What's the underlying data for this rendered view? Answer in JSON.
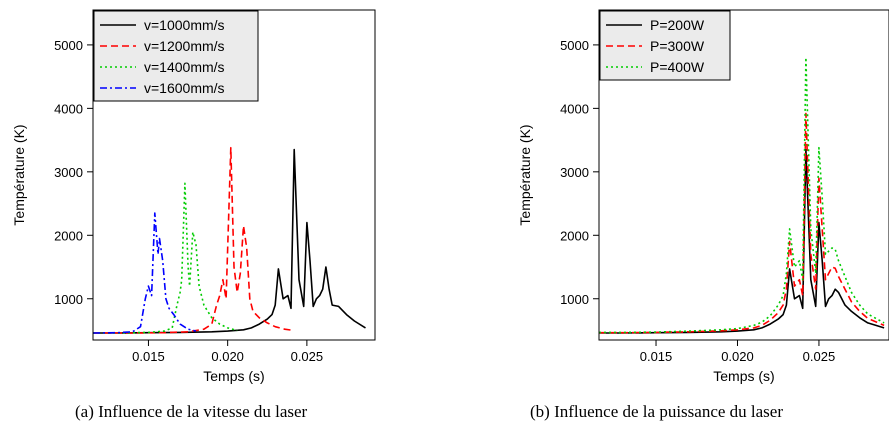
{
  "chart_data": [
    {
      "type": "line",
      "caption": "(a)  Influence de la vitesse du laser",
      "xlabel": "Temps (s)",
      "ylabel": "Température (K)",
      "xlim": [
        0.0115,
        0.0293
      ],
      "ylim": [
        350,
        5550
      ],
      "xticks": [
        "0.015",
        "0.020",
        "0.025"
      ],
      "xtick_values": [
        0.015,
        0.02,
        0.025
      ],
      "yticks": [
        "1000",
        "2000",
        "3000",
        "4000",
        "5000"
      ],
      "ytick_values": [
        1000,
        2000,
        3000,
        4000,
        5000
      ],
      "legend_position": "top-left",
      "series": [
        {
          "name": "v=1000mm/s",
          "color": "#000000",
          "dash": "solid",
          "points": [
            [
              0.0115,
              460
            ],
            [
              0.013,
              460
            ],
            [
              0.015,
              465
            ],
            [
              0.017,
              470
            ],
            [
              0.019,
              480
            ],
            [
              0.02,
              490
            ],
            [
              0.021,
              510
            ],
            [
              0.0215,
              540
            ],
            [
              0.022,
              600
            ],
            [
              0.0225,
              680
            ],
            [
              0.0228,
              750
            ],
            [
              0.023,
              900
            ],
            [
              0.0232,
              1470
            ],
            [
              0.0235,
              1000
            ],
            [
              0.0238,
              1050
            ],
            [
              0.024,
              850
            ],
            [
              0.0242,
              3350
            ],
            [
              0.0245,
              1300
            ],
            [
              0.0248,
              880
            ],
            [
              0.025,
              2200
            ],
            [
              0.0252,
              1600
            ],
            [
              0.0254,
              880
            ],
            [
              0.0256,
              1000
            ],
            [
              0.0258,
              1050
            ],
            [
              0.026,
              1150
            ],
            [
              0.0262,
              1500
            ],
            [
              0.0264,
              1150
            ],
            [
              0.0266,
              900
            ],
            [
              0.027,
              880
            ],
            [
              0.0275,
              750
            ],
            [
              0.028,
              650
            ],
            [
              0.0287,
              540
            ]
          ]
        },
        {
          "name": "v=1200mm/s",
          "color": "#ff0000",
          "dash": "dashed",
          "points": [
            [
              0.0115,
              460
            ],
            [
              0.014,
              460
            ],
            [
              0.016,
              465
            ],
            [
              0.0175,
              480
            ],
            [
              0.0185,
              520
            ],
            [
              0.019,
              600
            ],
            [
              0.0193,
              900
            ],
            [
              0.0195,
              1050
            ],
            [
              0.0197,
              1300
            ],
            [
              0.0199,
              1000
            ],
            [
              0.0202,
              3380
            ],
            [
              0.0204,
              1500
            ],
            [
              0.0206,
              1100
            ],
            [
              0.0208,
              1400
            ],
            [
              0.021,
              2150
            ],
            [
              0.0212,
              1800
            ],
            [
              0.0214,
              1000
            ],
            [
              0.0216,
              800
            ],
            [
              0.022,
              700
            ],
            [
              0.0225,
              620
            ],
            [
              0.023,
              560
            ],
            [
              0.0236,
              520
            ],
            [
              0.0242,
              500
            ]
          ]
        },
        {
          "name": "v=1400mm/s",
          "color": "#00cc00",
          "dash": "dotted",
          "points": [
            [
              0.0115,
              460
            ],
            [
              0.013,
              460
            ],
            [
              0.015,
              470
            ],
            [
              0.016,
              490
            ],
            [
              0.0165,
              540
            ],
            [
              0.0168,
              900
            ],
            [
              0.017,
              1100
            ],
            [
              0.0171,
              1300
            ],
            [
              0.0173,
              2820
            ],
            [
              0.0175,
              1500
            ],
            [
              0.0176,
              1200
            ],
            [
              0.0178,
              2050
            ],
            [
              0.018,
              1850
            ],
            [
              0.0182,
              1200
            ],
            [
              0.0185,
              900
            ],
            [
              0.019,
              700
            ],
            [
              0.0195,
              600
            ],
            [
              0.02,
              540
            ],
            [
              0.0206,
              500
            ]
          ]
        },
        {
          "name": "v=1600mm/s",
          "color": "#0000ff",
          "dash": "dashdot",
          "points": [
            [
              0.0115,
              460
            ],
            [
              0.013,
              465
            ],
            [
              0.014,
              480
            ],
            [
              0.0145,
              560
            ],
            [
              0.0148,
              1000
            ],
            [
              0.015,
              1200
            ],
            [
              0.0152,
              1050
            ],
            [
              0.0154,
              2350
            ],
            [
              0.0156,
              1700
            ],
            [
              0.0157,
              1950
            ],
            [
              0.0159,
              1600
            ],
            [
              0.0161,
              1000
            ],
            [
              0.0163,
              850
            ],
            [
              0.0166,
              750
            ],
            [
              0.017,
              600
            ],
            [
              0.0175,
              520
            ],
            [
              0.018,
              490
            ]
          ]
        }
      ]
    },
    {
      "type": "line",
      "caption": "(b)  Influence de la puissance du laser",
      "xlabel": "Temps (s)",
      "ylabel": "Température (K)",
      "xlim": [
        0.0115,
        0.0293
      ],
      "ylim": [
        350,
        5550
      ],
      "xticks": [
        "0.015",
        "0.020",
        "0.025"
      ],
      "xtick_values": [
        0.015,
        0.02,
        0.025
      ],
      "yticks": [
        "1000",
        "2000",
        "3000",
        "4000",
        "5000"
      ],
      "ytick_values": [
        1000,
        2000,
        3000,
        4000,
        5000
      ],
      "legend_position": "top-left",
      "series": [
        {
          "name": "P=200W",
          "color": "#000000",
          "dash": "solid",
          "points": [
            [
              0.0115,
              460
            ],
            [
              0.013,
              460
            ],
            [
              0.015,
              465
            ],
            [
              0.017,
              470
            ],
            [
              0.019,
              480
            ],
            [
              0.02,
              490
            ],
            [
              0.021,
              510
            ],
            [
              0.0215,
              540
            ],
            [
              0.022,
              600
            ],
            [
              0.0225,
              680
            ],
            [
              0.0228,
              750
            ],
            [
              0.023,
              900
            ],
            [
              0.0232,
              1470
            ],
            [
              0.0235,
              1000
            ],
            [
              0.0238,
              1050
            ],
            [
              0.024,
              850
            ],
            [
              0.0242,
              3350
            ],
            [
              0.0245,
              1300
            ],
            [
              0.0248,
              880
            ],
            [
              0.025,
              2200
            ],
            [
              0.0252,
              1600
            ],
            [
              0.0254,
              880
            ],
            [
              0.0256,
              1000
            ],
            [
              0.0258,
              1050
            ],
            [
              0.026,
              1150
            ],
            [
              0.0262,
              1100
            ],
            [
              0.0266,
              900
            ],
            [
              0.027,
              800
            ],
            [
              0.0275,
              700
            ],
            [
              0.028,
              620
            ],
            [
              0.029,
              540
            ]
          ]
        },
        {
          "name": "P=300W",
          "color": "#ff0000",
          "dash": "dashed",
          "points": [
            [
              0.0115,
              465
            ],
            [
              0.013,
              465
            ],
            [
              0.015,
              470
            ],
            [
              0.017,
              480
            ],
            [
              0.019,
              495
            ],
            [
              0.02,
              510
            ],
            [
              0.021,
              540
            ],
            [
              0.0215,
              580
            ],
            [
              0.022,
              660
            ],
            [
              0.0225,
              780
            ],
            [
              0.0228,
              900
            ],
            [
              0.023,
              1150
            ],
            [
              0.0232,
              1900
            ],
            [
              0.0235,
              1200
            ],
            [
              0.0238,
              1300
            ],
            [
              0.024,
              1050
            ],
            [
              0.0242,
              3920
            ],
            [
              0.0245,
              1700
            ],
            [
              0.0248,
              1150
            ],
            [
              0.025,
              2900
            ],
            [
              0.0252,
              2100
            ],
            [
              0.0254,
              1300
            ],
            [
              0.0256,
              1400
            ],
            [
              0.0258,
              1500
            ],
            [
              0.026,
              1480
            ],
            [
              0.0262,
              1350
            ],
            [
              0.0266,
              1150
            ],
            [
              0.027,
              950
            ],
            [
              0.0275,
              800
            ],
            [
              0.028,
              690
            ],
            [
              0.029,
              580
            ]
          ]
        },
        {
          "name": "P=400W",
          "color": "#00cc00",
          "dash": "dotted",
          "points": [
            [
              0.0115,
              470
            ],
            [
              0.013,
              470
            ],
            [
              0.015,
              475
            ],
            [
              0.017,
              490
            ],
            [
              0.019,
              510
            ],
            [
              0.02,
              530
            ],
            [
              0.021,
              580
            ],
            [
              0.0215,
              630
            ],
            [
              0.022,
              730
            ],
            [
              0.0225,
              900
            ],
            [
              0.0228,
              1050
            ],
            [
              0.023,
              1400
            ],
            [
              0.0232,
              2100
            ],
            [
              0.0235,
              1500
            ],
            [
              0.0238,
              1600
            ],
            [
              0.024,
              1300
            ],
            [
              0.0242,
              4800
            ],
            [
              0.0245,
              2100
            ],
            [
              0.0248,
              1400
            ],
            [
              0.025,
              3380
            ],
            [
              0.0252,
              2600
            ],
            [
              0.0254,
              1700
            ],
            [
              0.0256,
              1750
            ],
            [
              0.0258,
              1800
            ],
            [
              0.026,
              1780
            ],
            [
              0.0262,
              1600
            ],
            [
              0.0266,
              1350
            ],
            [
              0.027,
              1100
            ],
            [
              0.0275,
              900
            ],
            [
              0.028,
              760
            ],
            [
              0.029,
              620
            ]
          ]
        }
      ]
    }
  ]
}
